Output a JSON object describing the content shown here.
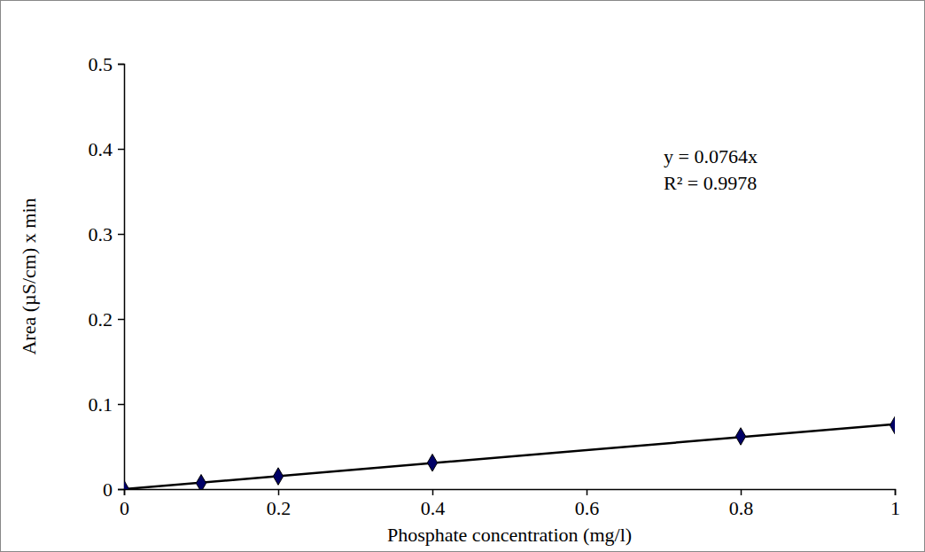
{
  "chart_data": {
    "type": "scatter",
    "x_label": "Phosphate concentration (mg/l)",
    "y_label": "Area (µS/cm) x min",
    "annotations": [
      "y = 0.0764x",
      "R² = 0.9978"
    ],
    "series": [
      {
        "type": "scatter",
        "color": "#000066",
        "marker": "diamond",
        "x": [
          0,
          0.1,
          0.2,
          0.4,
          0.8,
          1
        ],
        "values": [
          0,
          0.007,
          0.015,
          0.031,
          0.062,
          0.075
        ]
      },
      {
        "type": "line",
        "color": "#000000",
        "line_style": "solid",
        "x": [
          0,
          1
        ],
        "values": [
          0,
          0.0764
        ]
      }
    ],
    "xlim": [
      0,
      1
    ],
    "xticks": [
      0,
      0.2,
      0.4,
      0.6,
      0.8,
      1
    ],
    "ylim": [
      0,
      0.5
    ],
    "yticks": [
      0,
      0.1,
      0.2,
      0.3,
      0.4,
      0.5
    ],
    "grid": false
  }
}
